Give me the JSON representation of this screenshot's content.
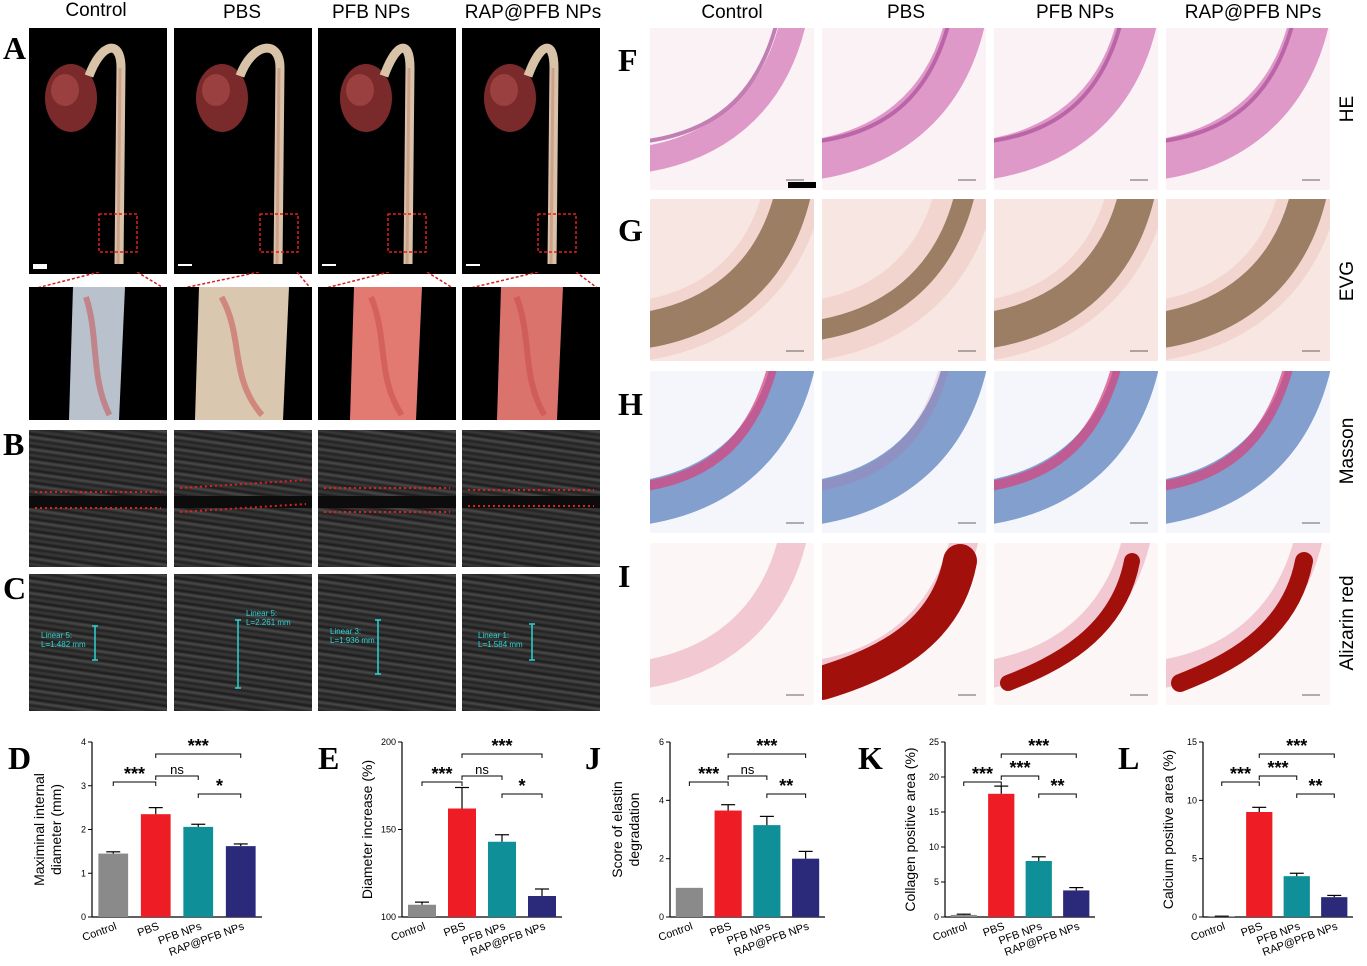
{
  "panels": {
    "A": "A",
    "B": "B",
    "C": "C",
    "D": "D",
    "E": "E",
    "F": "F",
    "G": "G",
    "H": "H",
    "I": "I",
    "J": "J",
    "K": "K",
    "L": "L"
  },
  "groups": [
    "Control",
    "PBS",
    "PFB NPs",
    "RAP@PFB NPs"
  ],
  "stain_rows": [
    "HE",
    "EVG",
    "Masson",
    "Alizarin red"
  ],
  "ultrasound_measurements": [
    {
      "line": "Linear 5:",
      "value": "L=1.482 mm"
    },
    {
      "line": "Linear 5:",
      "value": "L=2.261 mm"
    },
    {
      "line": "Linear 3:",
      "value": "L=1.936 mm"
    },
    {
      "line": "Linear 1:",
      "value": "L=1.584 mm"
    }
  ],
  "colors": {
    "control": "#8a8a8a",
    "pbs": "#ee1c25",
    "pfb": "#0f8f98",
    "rap": "#2b2a7a",
    "dotted_outline": "#e02020",
    "measure_line": "#2ad4d4"
  },
  "chart_data": [
    {
      "id": "D",
      "type": "bar",
      "categories": [
        "Control",
        "PBS",
        "PFB NPs",
        "RAP@PFB NPs"
      ],
      "values": [
        1.45,
        2.35,
        2.06,
        1.62
      ],
      "errors": [
        0.04,
        0.15,
        0.06,
        0.05
      ],
      "ylabel": "Maximinal internal diameter (mm)",
      "ylabel_lines": [
        "Maximinal internal",
        "diameter (mm)"
      ],
      "ylim": [
        0,
        4
      ],
      "yticks": [
        0,
        1,
        2,
        3,
        4
      ],
      "significance": [
        {
          "from": 0,
          "to": 1,
          "label": "***"
        },
        {
          "from": 1,
          "to": 2,
          "label": "ns"
        },
        {
          "from": 1,
          "to": 3,
          "label": "***"
        },
        {
          "from": 2,
          "to": 3,
          "label": "*"
        }
      ]
    },
    {
      "id": "E",
      "type": "bar",
      "categories": [
        "Control",
        "PBS",
        "PFB NPs",
        "RAP@PFB NPs"
      ],
      "values": [
        107,
        162,
        143,
        112
      ],
      "errors": [
        1.5,
        12,
        4,
        4
      ],
      "ylabel": "Diameter increase (%)",
      "ylabel_lines": [
        "Diameter increase (%)"
      ],
      "ylim": [
        100,
        200
      ],
      "yticks": [
        100,
        150,
        200
      ],
      "significance": [
        {
          "from": 0,
          "to": 1,
          "label": "***"
        },
        {
          "from": 1,
          "to": 2,
          "label": "ns"
        },
        {
          "from": 1,
          "to": 3,
          "label": "***"
        },
        {
          "from": 2,
          "to": 3,
          "label": "*"
        }
      ]
    },
    {
      "id": "J",
      "type": "bar",
      "categories": [
        "Control",
        "PBS",
        "PFB NPs",
        "RAP@PFB NPs"
      ],
      "values": [
        1.0,
        3.65,
        3.15,
        2.0
      ],
      "errors": [
        0,
        0.2,
        0.3,
        0.25
      ],
      "ylabel": "Score of elastin degradation",
      "ylabel_lines": [
        "Score of elastin",
        "degradation"
      ],
      "ylim": [
        0,
        6
      ],
      "yticks": [
        0,
        2,
        4,
        6
      ],
      "significance": [
        {
          "from": 0,
          "to": 1,
          "label": "***"
        },
        {
          "from": 1,
          "to": 2,
          "label": "ns"
        },
        {
          "from": 1,
          "to": 3,
          "label": "***"
        },
        {
          "from": 2,
          "to": 3,
          "label": "**"
        }
      ]
    },
    {
      "id": "K",
      "type": "bar",
      "categories": [
        "Control",
        "PBS",
        "PFB NPs",
        "RAP@PFB NPs"
      ],
      "values": [
        0.3,
        17.6,
        8.0,
        3.8
      ],
      "errors": [
        0.1,
        1.1,
        0.6,
        0.4
      ],
      "ylabel": "Collagen positive area (%)",
      "ylabel_lines": [
        "Collagen positive area (%)"
      ],
      "ylim": [
        0,
        25
      ],
      "yticks": [
        0,
        5,
        10,
        15,
        20,
        25
      ],
      "significance": [
        {
          "from": 0,
          "to": 1,
          "label": "***"
        },
        {
          "from": 1,
          "to": 2,
          "label": "***"
        },
        {
          "from": 1,
          "to": 3,
          "label": "***"
        },
        {
          "from": 2,
          "to": 3,
          "label": "**"
        }
      ]
    },
    {
      "id": "L",
      "type": "bar",
      "categories": [
        "Control",
        "PBS",
        "PFB NPs",
        "RAP@PFB NPs"
      ],
      "values": [
        0.05,
        9.0,
        3.5,
        1.7
      ],
      "errors": [
        0.02,
        0.4,
        0.25,
        0.15
      ],
      "ylabel": "Calcium positive area (%)",
      "ylabel_lines": [
        "Calcium positive area (%)"
      ],
      "ylim": [
        0,
        15
      ],
      "yticks": [
        0,
        5,
        10,
        15
      ],
      "significance": [
        {
          "from": 0,
          "to": 1,
          "label": "***"
        },
        {
          "from": 1,
          "to": 2,
          "label": "***"
        },
        {
          "from": 1,
          "to": 3,
          "label": "***"
        },
        {
          "from": 2,
          "to": 3,
          "label": "**"
        }
      ]
    }
  ]
}
